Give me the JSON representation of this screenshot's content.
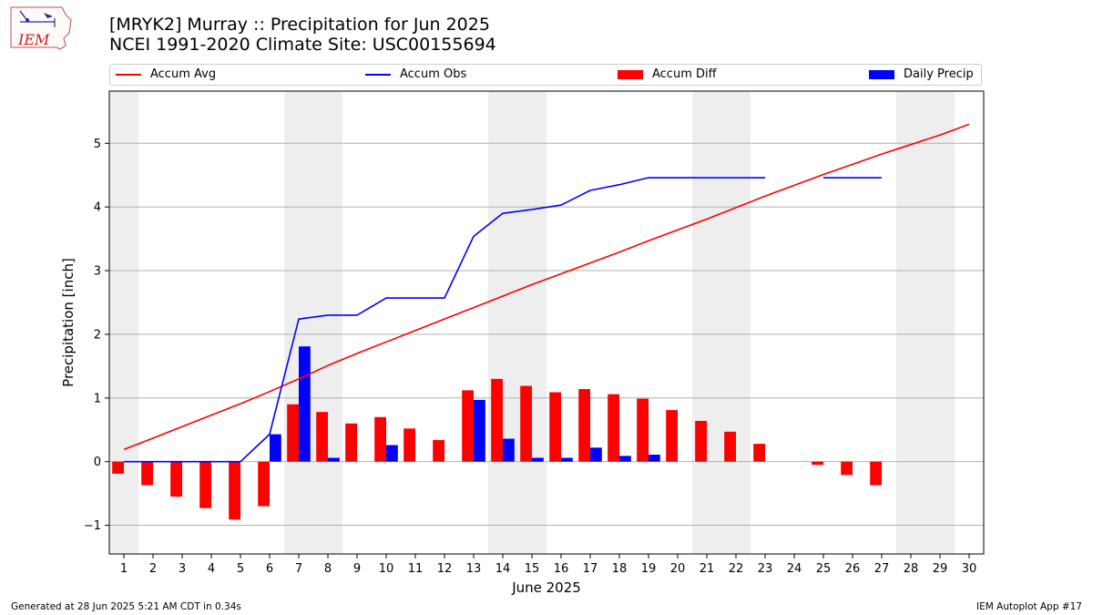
{
  "header": {
    "title_line1": "[MRYK2] Murray :: Precipitation for Jun 2025",
    "title_line2": "NCEI 1991-2020 Climate Site: USC00155694",
    "logo_text": "IEM"
  },
  "footer": {
    "generated": "Generated at 28 Jun 2025 5:21 AM CDT in 0.34s",
    "app": "IEM Autoplot App #17"
  },
  "colors": {
    "avg": "#ff0000",
    "obs": "#0000ff",
    "diff": "#ff0000",
    "daily": "#0000ff",
    "weekend": "#eeeeee",
    "grid": "#b0b0b0"
  },
  "chart_data": {
    "type": "bar",
    "xlabel": "June 2025",
    "ylabel": "Precipitation [inch]",
    "xlim": [
      0.5,
      30.5
    ],
    "ylim": [
      -1.45,
      5.82
    ],
    "yticks": [
      -1,
      0,
      1,
      2,
      3,
      4,
      5
    ],
    "ytick_labels": [
      "−1",
      "0",
      "1",
      "2",
      "3",
      "4",
      "5"
    ],
    "days": [
      1,
      2,
      3,
      4,
      5,
      6,
      7,
      8,
      9,
      10,
      11,
      12,
      13,
      14,
      15,
      16,
      17,
      18,
      19,
      20,
      21,
      22,
      23,
      24,
      25,
      26,
      27,
      28,
      29,
      30
    ],
    "day_labels": [
      "1",
      "2",
      "3",
      "4",
      "5",
      "6",
      "7",
      "8",
      "9",
      "10",
      "11",
      "12",
      "13",
      "14",
      "15",
      "16",
      "17",
      "18",
      "19",
      "20",
      "21",
      "22",
      "23",
      "24",
      "25",
      "26",
      "27",
      "28",
      "29",
      "30"
    ],
    "weekend_spans": [
      [
        0.5,
        1.5
      ],
      [
        6.5,
        8.5
      ],
      [
        13.5,
        15.5
      ],
      [
        20.5,
        22.5
      ],
      [
        27.5,
        29.5
      ]
    ],
    "legend_position": "top",
    "grid": "horizontal",
    "series": [
      {
        "name": "Accum Avg",
        "kind": "line",
        "values": [
          0.19,
          0.37,
          0.55,
          0.73,
          0.91,
          1.1,
          1.3,
          1.51,
          1.7,
          1.88,
          2.06,
          2.24,
          2.42,
          2.6,
          2.78,
          2.95,
          3.12,
          3.29,
          3.47,
          3.64,
          3.81,
          3.99,
          4.17,
          4.34,
          4.51,
          4.67,
          4.83,
          4.98,
          5.13,
          5.3
        ]
      },
      {
        "name": "Accum Obs",
        "kind": "line",
        "values": [
          0,
          0,
          0,
          0,
          0,
          0.43,
          2.24,
          2.3,
          2.3,
          2.57,
          2.57,
          2.57,
          3.54,
          3.9,
          3.96,
          4.03,
          4.26,
          4.35,
          4.46,
          4.46,
          4.46,
          4.46,
          4.46,
          null,
          4.46,
          4.46,
          4.46,
          null,
          null,
          null
        ]
      },
      {
        "name": "Accum Diff",
        "kind": "bar",
        "values": [
          -0.19,
          -0.37,
          -0.55,
          -0.73,
          -0.91,
          -0.7,
          0.9,
          0.78,
          0.6,
          0.7,
          0.52,
          0.34,
          1.12,
          1.3,
          1.19,
          1.09,
          1.14,
          1.06,
          0.99,
          0.81,
          0.64,
          0.47,
          0.28,
          null,
          -0.05,
          -0.21,
          -0.37,
          null,
          null,
          null
        ]
      },
      {
        "name": "Daily Precip",
        "kind": "bar",
        "values": [
          0,
          0,
          0,
          0,
          0,
          0.43,
          1.81,
          0.06,
          0,
          0.26,
          0,
          0,
          0.97,
          0.36,
          0.06,
          0.06,
          0.22,
          0.09,
          0.11,
          0,
          0,
          0,
          0,
          null,
          0,
          0,
          0,
          null,
          null,
          null
        ]
      }
    ]
  }
}
